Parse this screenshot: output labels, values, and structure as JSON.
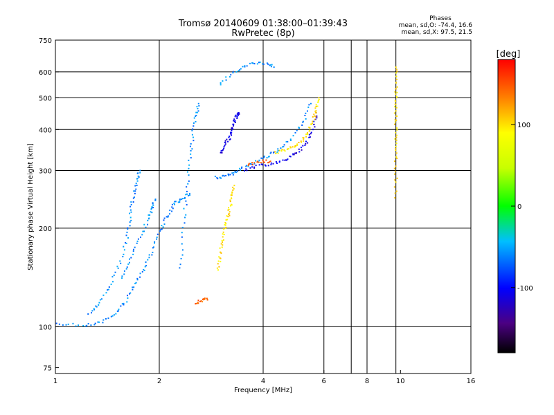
{
  "chart_data": {
    "type": "scatter",
    "title": "Tromsø 20140609 01:38:00–01:39:43",
    "subtitle": "RwPretec (8p)",
    "xlabel": "Frequency [MHz]",
    "ylabel": "Stationary phase Virtual Height [km]",
    "x_scale": "log",
    "y_scale": "log",
    "xlim": [
      1,
      16
    ],
    "ylim": [
      72,
      750
    ],
    "x_ticks": [
      1,
      2,
      4,
      6,
      8,
      10,
      16
    ],
    "x_tick_labels": [
      "1",
      "2",
      "4",
      "6",
      "8",
      "10",
      "16"
    ],
    "y_ticks": [
      75,
      100,
      200,
      300,
      400,
      500,
      600,
      750
    ],
    "y_tick_labels": [
      "75",
      "100",
      "200",
      "300",
      "400",
      "500",
      "600",
      "750"
    ],
    "x_gridlines": [
      2,
      4,
      6,
      7.2,
      8,
      9.7
    ],
    "y_gridlines": [
      100,
      200,
      300,
      400,
      500,
      600
    ],
    "grid": true,
    "phase_stats": {
      "heading": "Phases",
      "o_line": "mean, sd,O: -74.4, 16.6",
      "x_line": "mean, sd,X:  97.5, 21.5"
    },
    "colorbar": {
      "label": "[deg]",
      "range": [
        -180,
        180
      ],
      "ticks": [
        100,
        0,
        -100
      ],
      "tick_labels": [
        "100",
        "0",
        "-100"
      ]
    },
    "series": [
      {
        "color_phase": -60,
        "segments": [
          [
            [
              1.0,
              102
            ],
            [
              1.2,
              101
            ],
            [
              1.35,
              103
            ],
            [
              1.5,
              110
            ],
            [
              1.6,
              120
            ],
            [
              1.7,
              135
            ],
            [
              1.8,
              150
            ],
            [
              1.9,
              170
            ],
            [
              2.0,
              195
            ],
            [
              2.1,
              215
            ],
            [
              2.2,
              235
            ],
            [
              2.3,
              245
            ],
            [
              2.45,
              255
            ]
          ],
          [
            [
              1.25,
              110
            ],
            [
              1.35,
              118
            ],
            [
              1.45,
              135
            ],
            [
              1.55,
              160
            ],
            [
              1.62,
              190
            ],
            [
              1.65,
              220
            ],
            [
              1.68,
              250
            ],
            [
              1.72,
              280
            ],
            [
              1.76,
              300
            ]
          ],
          [
            [
              1.55,
              140
            ],
            [
              1.65,
              160
            ],
            [
              1.75,
              185
            ],
            [
              1.85,
              210
            ],
            [
              1.9,
              230
            ],
            [
              1.95,
              245
            ]
          ],
          [
            [
              2.3,
              150
            ],
            [
              2.35,
              200
            ],
            [
              2.4,
              260
            ],
            [
              2.45,
              320
            ],
            [
              2.5,
              380
            ],
            [
              2.55,
              440
            ],
            [
              2.6,
              480
            ]
          ],
          [
            [
              2.9,
              285
            ],
            [
              3.1,
              288
            ],
            [
              3.3,
              295
            ],
            [
              3.5,
              305
            ],
            [
              3.8,
              318
            ],
            [
              4.1,
              330
            ],
            [
              4.4,
              345
            ],
            [
              4.8,
              370
            ],
            [
              5.2,
              420
            ],
            [
              5.5,
              480
            ]
          ],
          [
            [
              3.0,
              550
            ],
            [
              3.3,
              600
            ],
            [
              3.6,
              630
            ],
            [
              4.0,
              640
            ],
            [
              4.3,
              620
            ]
          ]
        ]
      },
      {
        "color_phase": -110,
        "segments": [
          [
            [
              3.0,
              340
            ],
            [
              3.1,
              360
            ],
            [
              3.2,
              380
            ],
            [
              3.25,
              400
            ],
            [
              3.3,
              420
            ],
            [
              3.35,
              440
            ],
            [
              3.4,
              450
            ]
          ],
          [
            [
              3.5,
              300
            ],
            [
              3.9,
              310
            ],
            [
              4.3,
              315
            ],
            [
              4.7,
              325
            ],
            [
              5.0,
              340
            ],
            [
              5.3,
              360
            ],
            [
              5.6,
              400
            ],
            [
              5.7,
              450
            ]
          ]
        ]
      },
      {
        "color_phase": 100,
        "segments": [
          [
            [
              2.95,
              150
            ],
            [
              3.0,
              165
            ],
            [
              3.05,
              180
            ],
            [
              3.1,
              200
            ],
            [
              3.15,
              215
            ],
            [
              3.2,
              230
            ],
            [
              3.25,
              250
            ],
            [
              3.3,
              270
            ]
          ],
          [
            [
              4.3,
              340
            ],
            [
              4.6,
              345
            ],
            [
              4.9,
              355
            ],
            [
              5.2,
              370
            ],
            [
              5.4,
              395
            ],
            [
              5.6,
              430
            ],
            [
              5.7,
              460
            ],
            [
              5.8,
              500
            ]
          ],
          [
            [
              9.7,
              250
            ],
            [
              9.7,
              300
            ],
            [
              9.7,
              350
            ],
            [
              9.7,
              400
            ],
            [
              9.7,
              450
            ],
            [
              9.7,
              500
            ],
            [
              9.7,
              550
            ],
            [
              9.7,
              620
            ]
          ]
        ]
      },
      {
        "color_phase": 145,
        "segments": [
          [
            [
              2.55,
              118
            ],
            [
              2.65,
              120
            ],
            [
              2.75,
              122
            ]
          ],
          [
            [
              3.6,
              310
            ],
            [
              3.9,
              320
            ],
            [
              4.2,
              320
            ]
          ]
        ]
      }
    ]
  }
}
